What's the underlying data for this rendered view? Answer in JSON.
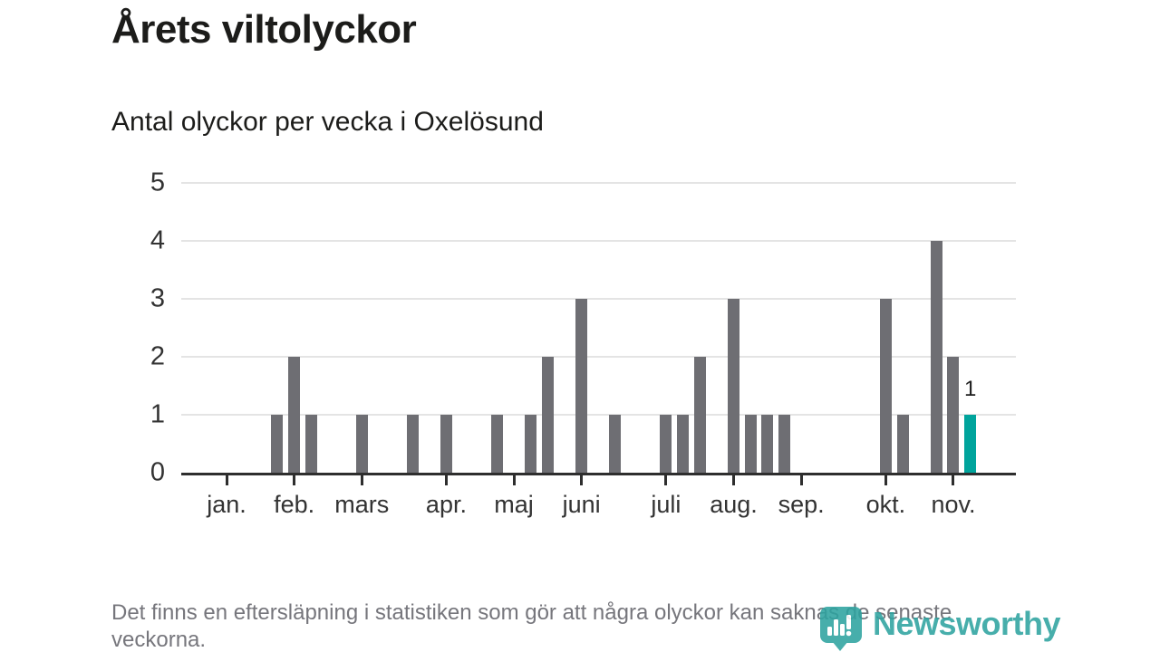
{
  "header": {
    "title": "Årets viltolyckor",
    "subtitle": "Antal olyckor per vecka i Oxelösund"
  },
  "footer": {
    "note": "Det finns en eftersläpning i statistiken som gör att några olyckor kan saknas de senaste veckorna."
  },
  "branding": {
    "logo_text": "Newsworthy",
    "logo_icon": "newsworthy-pin-barchart-icon",
    "logo_color": "#2ea3a0"
  },
  "colors": {
    "bar": "#6e6e73",
    "highlight_bar": "#00a49c",
    "axis": "#2e2e2e",
    "gridline": "#e4e4e4",
    "tick_label": "#333333",
    "footer_text": "#76767c"
  },
  "chart_data": {
    "type": "bar",
    "title": "Årets viltolyckor",
    "subtitle": "Antal olyckor per vecka i Oxelösund",
    "xlabel": "",
    "ylabel": "",
    "x_unit": "week of year",
    "ylim": [
      0,
      5
    ],
    "yticks": [
      0,
      1,
      2,
      3,
      4,
      5
    ],
    "grid": true,
    "legend": "none",
    "month_ticks": [
      {
        "label": "jan.",
        "week": 1
      },
      {
        "label": "feb.",
        "week": 5
      },
      {
        "label": "mars",
        "week": 9
      },
      {
        "label": "apr.",
        "week": 14
      },
      {
        "label": "maj",
        "week": 18
      },
      {
        "label": "juni",
        "week": 22
      },
      {
        "label": "juli",
        "week": 27
      },
      {
        "label": "aug.",
        "week": 31
      },
      {
        "label": "sep.",
        "week": 35
      },
      {
        "label": "okt.",
        "week": 40
      },
      {
        "label": "nov.",
        "week": 44
      }
    ],
    "bars": [
      {
        "week": 4,
        "value": 1
      },
      {
        "week": 5,
        "value": 2
      },
      {
        "week": 6,
        "value": 1
      },
      {
        "week": 9,
        "value": 1
      },
      {
        "week": 12,
        "value": 1
      },
      {
        "week": 14,
        "value": 1
      },
      {
        "week": 17,
        "value": 1
      },
      {
        "week": 19,
        "value": 1
      },
      {
        "week": 20,
        "value": 2
      },
      {
        "week": 22,
        "value": 3
      },
      {
        "week": 24,
        "value": 1
      },
      {
        "week": 27,
        "value": 1
      },
      {
        "week": 28,
        "value": 1
      },
      {
        "week": 29,
        "value": 2
      },
      {
        "week": 31,
        "value": 3
      },
      {
        "week": 32,
        "value": 1
      },
      {
        "week": 33,
        "value": 1
      },
      {
        "week": 34,
        "value": 1
      },
      {
        "week": 40,
        "value": 3
      },
      {
        "week": 41,
        "value": 1
      },
      {
        "week": 43,
        "value": 4
      },
      {
        "week": 44,
        "value": 2
      },
      {
        "week": 45,
        "value": 1,
        "highlight": true,
        "data_label": "1"
      }
    ]
  }
}
